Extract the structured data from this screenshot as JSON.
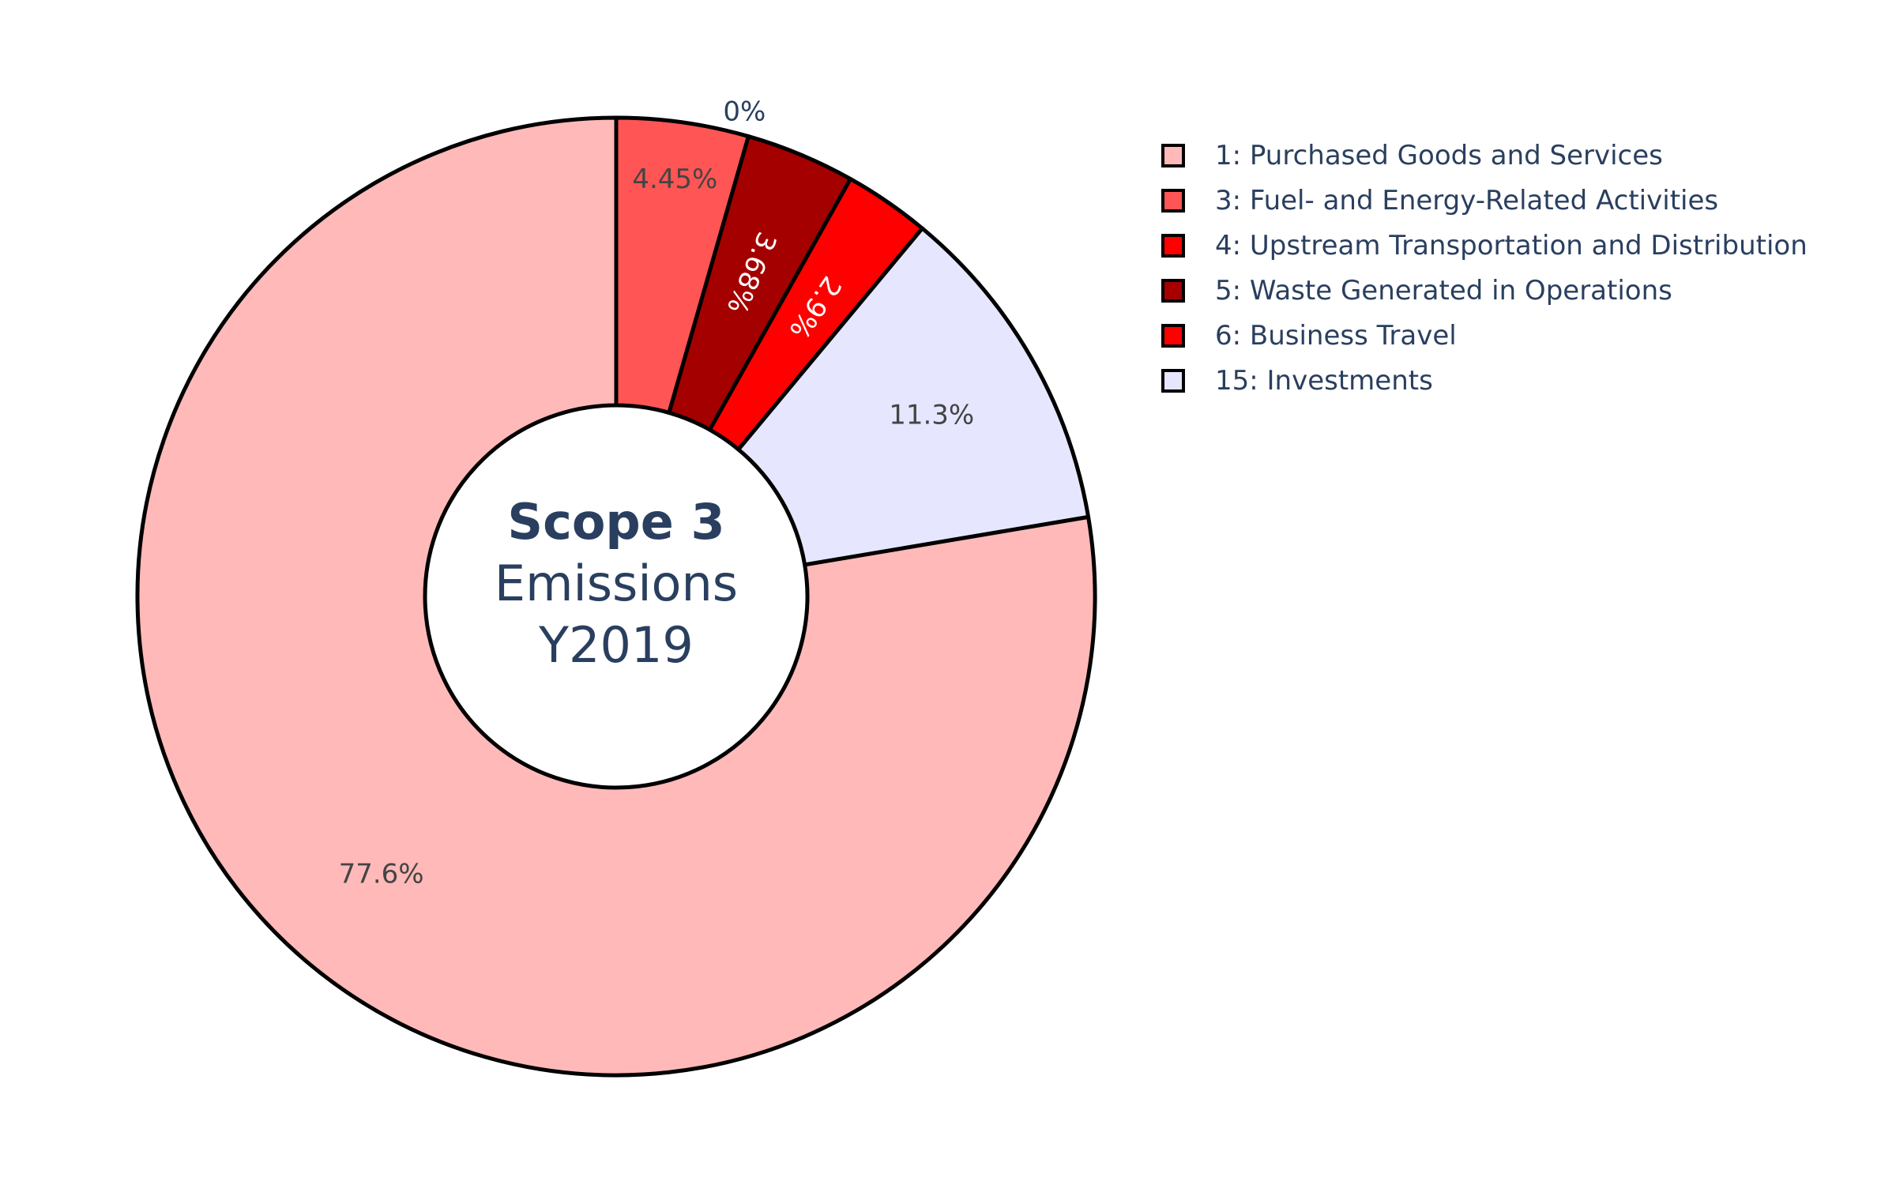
{
  "chart_data": {
    "type": "pie",
    "hole": true,
    "center_label": {
      "line1": "Scope 3",
      "line2": "Emissions",
      "line3": "Y2019"
    },
    "slices": [
      {
        "label": "1: Purchased Goods and Services",
        "value": 77.6,
        "text": "77.6%",
        "color": "#ffb9b9"
      },
      {
        "label": "15: Investments",
        "value": 11.3,
        "text": "11.3%",
        "color": "#e6e6ff"
      },
      {
        "label": "6: Business Travel",
        "value": 2.9,
        "text": "2.9%",
        "color": "#ff0000"
      },
      {
        "label": "5: Waste Generated in Operations",
        "value": 3.68,
        "text": "3.68%",
        "color": "#a50000"
      },
      {
        "label": "4: Upstream Transportation and Distribution",
        "value": 0.0,
        "text": "0%",
        "color": "#ff0000"
      },
      {
        "label": "3: Fuel- and Energy-Related Activities",
        "value": 4.45,
        "text": "4.45%",
        "color": "#ff5555"
      }
    ],
    "legend": [
      {
        "label": "1: Purchased Goods and Services",
        "color": "#ffb9b9"
      },
      {
        "label": "3: Fuel- and Energy-Related Activities",
        "color": "#ff5555"
      },
      {
        "label": "4: Upstream Transportation and Distribution",
        "color": "#ff0000"
      },
      {
        "label": "5: Waste Generated in Operations",
        "color": "#a50000"
      },
      {
        "label": "6: Business Travel",
        "color": "#ff0000"
      },
      {
        "label": "15: Investments",
        "color": "#e6e6ff"
      }
    ],
    "legend_position": "top-right"
  }
}
